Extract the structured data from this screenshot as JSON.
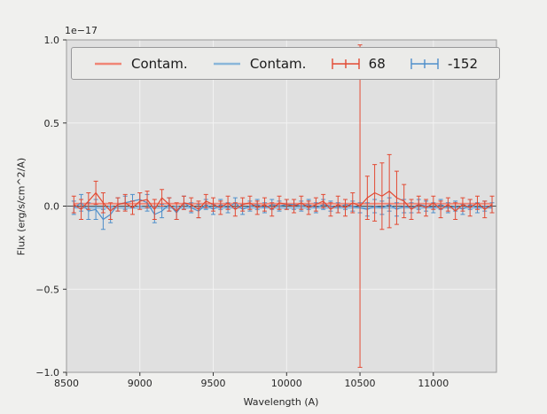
{
  "figure": {
    "offset_text": "1e−17"
  },
  "axes": {
    "xlabel": "Wavelength (A)",
    "ylabel": "Flux (erg/s/cm^2/A)"
  },
  "legend": {
    "items": [
      {
        "label": "Contam.",
        "kind": "line",
        "color": "#f08576"
      },
      {
        "label": "Contam.",
        "kind": "line",
        "color": "#8ab6d9"
      },
      {
        "label": "68",
        "kind": "errorbar",
        "color": "#e24a33"
      },
      {
        "label": "-152",
        "kind": "errorbar",
        "color": "#4f8fca"
      }
    ]
  },
  "chart_data": {
    "type": "line",
    "title": "",
    "xlabel": "Wavelength (A)",
    "ylabel": "Flux (erg/s/cm^2/A)",
    "offset_text": "1e−17",
    "xlim": [
      8500,
      11430
    ],
    "ylim": [
      -1.0,
      1.0
    ],
    "xticks": [
      8500,
      9000,
      9500,
      10000,
      10500,
      11000
    ],
    "xticklabels": [
      "8500",
      "9000",
      "9500",
      "10000",
      "10500",
      "11000"
    ],
    "yticks": [
      -1.0,
      -0.5,
      0.0,
      0.5,
      1.0
    ],
    "yticklabels": [
      "−1.0",
      "−0.5",
      "0.0",
      "0.5",
      "1.0"
    ],
    "grid": true,
    "legend_position": "top",
    "colors": {
      "figure_bg": "#f0f0ee",
      "plot_bg": "#e0e0e0",
      "grid": "#f2f2f2",
      "spine": "#9a9a9a",
      "zero_line": "#4a4a4a",
      "text": "#262626"
    },
    "x": [
      8550,
      8600,
      8650,
      8700,
      8750,
      8800,
      8850,
      8900,
      8950,
      9000,
      9050,
      9100,
      9150,
      9200,
      9250,
      9300,
      9350,
      9400,
      9450,
      9500,
      9550,
      9600,
      9650,
      9700,
      9750,
      9800,
      9850,
      9900,
      9950,
      10000,
      10050,
      10100,
      10150,
      10200,
      10250,
      10300,
      10350,
      10400,
      10450,
      10500,
      10550,
      10600,
      10650,
      10700,
      10750,
      10800,
      10850,
      10900,
      10950,
      11000,
      11050,
      11100,
      11150,
      11200,
      11250,
      11300,
      11350,
      11400
    ],
    "series": [
      {
        "name": "Contam.",
        "kind": "flat-line",
        "color": "#f08576",
        "width": 2,
        "flat_y": 0.015
      },
      {
        "name": "Contam.",
        "kind": "flat-line",
        "color": "#8ab6d9",
        "width": 2,
        "flat_y": -0.01
      },
      {
        "name": "-152",
        "kind": "errorbar",
        "color": "#4f8fca",
        "width": 1.2,
        "y": [
          -0.01,
          0.02,
          -0.03,
          -0.02,
          -0.08,
          -0.05,
          0.01,
          0.02,
          0.03,
          0.04,
          0.02,
          -0.05,
          -0.03,
          0.01,
          -0.04,
          0.02,
          -0.01,
          -0.03,
          0.01,
          -0.02,
          0.01,
          -0.01,
          0.02,
          -0.02,
          0.0,
          0.01,
          -0.01,
          0.01,
          0.0,
          0.01,
          0.01,
          0.0,
          0.01,
          -0.01,
          0.01,
          0.0,
          -0.01,
          0.01,
          0.0,
          -0.01,
          -0.02,
          0.0,
          -0.01,
          0.01,
          -0.02,
          0.0,
          -0.01,
          0.01,
          0.0,
          -0.01,
          0.01,
          -0.01,
          0.0,
          -0.02,
          0.01,
          -0.01,
          0.0,
          -0.01
        ],
        "yerr": [
          0.04,
          0.05,
          0.05,
          0.06,
          0.06,
          0.05,
          0.04,
          0.04,
          0.04,
          0.04,
          0.05,
          0.05,
          0.04,
          0.04,
          0.04,
          0.04,
          0.03,
          0.04,
          0.03,
          0.03,
          0.03,
          0.03,
          0.03,
          0.03,
          0.03,
          0.03,
          0.03,
          0.03,
          0.03,
          0.03,
          0.03,
          0.03,
          0.03,
          0.03,
          0.03,
          0.03,
          0.03,
          0.03,
          0.03,
          0.03,
          0.04,
          0.04,
          0.04,
          0.04,
          0.04,
          0.04,
          0.03,
          0.03,
          0.03,
          0.03,
          0.03,
          0.03,
          0.03,
          0.03,
          0.03,
          0.03,
          0.03,
          0.03
        ]
      },
      {
        "name": "68",
        "kind": "errorbar",
        "color": "#e24a33",
        "width": 1.2,
        "y": [
          0.01,
          -0.02,
          0.03,
          0.08,
          0.02,
          -0.03,
          0.01,
          0.02,
          -0.01,
          0.03,
          0.04,
          -0.02,
          0.05,
          0.01,
          -0.03,
          0.02,
          0.01,
          -0.02,
          0.03,
          0.01,
          -0.01,
          0.02,
          -0.02,
          0.01,
          0.02,
          -0.01,
          0.01,
          -0.02,
          0.02,
          0.01,
          0.0,
          0.02,
          -0.01,
          0.01,
          0.03,
          -0.02,
          0.01,
          -0.01,
          0.02,
          0.0,
          0.05,
          0.08,
          0.06,
          0.09,
          0.05,
          0.03,
          -0.02,
          0.01,
          -0.01,
          0.02,
          -0.02,
          0.01,
          -0.03,
          0.01,
          -0.01,
          0.02,
          -0.02,
          0.01
        ],
        "yerr": [
          0.05,
          0.06,
          0.05,
          0.07,
          0.06,
          0.05,
          0.04,
          0.05,
          0.04,
          0.05,
          0.05,
          0.06,
          0.05,
          0.04,
          0.05,
          0.04,
          0.04,
          0.05,
          0.04,
          0.04,
          0.04,
          0.04,
          0.04,
          0.04,
          0.04,
          0.04,
          0.04,
          0.04,
          0.04,
          0.03,
          0.04,
          0.04,
          0.04,
          0.04,
          0.04,
          0.04,
          0.05,
          0.05,
          0.06,
          0.97,
          0.13,
          0.17,
          0.2,
          0.22,
          0.16,
          0.1,
          0.06,
          0.05,
          0.05,
          0.04,
          0.05,
          0.04,
          0.05,
          0.04,
          0.05,
          0.04,
          0.05,
          0.05
        ]
      }
    ]
  }
}
